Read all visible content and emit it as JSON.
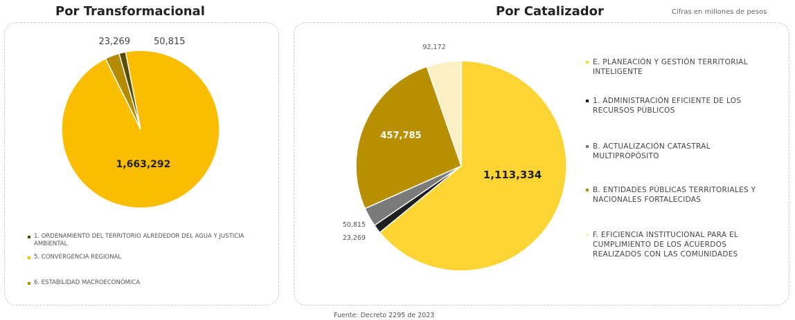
{
  "units_note": "Cifras en millones de pesos",
  "source": "Fuente: Decreto 2295 de 2023",
  "chart_data": [
    {
      "type": "pie",
      "title": "Por Transformacional",
      "legend_position": "bottom-left",
      "series": [
        {
          "name": "1. ORDENAMIENTO DEL TERRITORIO ALREDEDOR DEL AGUA Y JUSTICIA AMBIENTAL",
          "value": 23269,
          "label": "23,269",
          "color": "#5c4a00"
        },
        {
          "name": "5. CONVERGENCIA REGIONAL",
          "value": 1663292,
          "label": "1,663,292",
          "color": "#fbbd00"
        },
        {
          "name": "6. ESTABILIDAD MACROECONÓMICA",
          "value": 50815,
          "label": "50,815",
          "color": "#b48a00"
        }
      ]
    },
    {
      "type": "pie",
      "title": "Por Catalizador",
      "legend_position": "right",
      "series": [
        {
          "name": "E. PLANEACIÓN Y GESTIÓN TERRITORIAL INTELIGENTE",
          "value": 1113334,
          "label": "1,113,334",
          "color": "#fcd535"
        },
        {
          "name": "1. ADMINISTRACIÓN EFICIENTE DE LOS RECURSOS PÚBLICOS",
          "value": 23269,
          "label": "23,269",
          "color": "#1e1e1e"
        },
        {
          "name": "B. ACTUALIZACIÓN CATASTRAL MULTIPROPÓSITO",
          "value": 50815,
          "label": "50,815",
          "color": "#7a7a7a"
        },
        {
          "name": "B. ENTIDADES PÚBLICAS TERRITORIALES Y NACIONALES FORTALECIDAS",
          "value": 457785,
          "label": "457,785",
          "color": "#b88f00"
        },
        {
          "name": "F. EFICIENCIA INSTITUCIONAL PARA EL CUMPLIMIENTO DE LOS ACUERDOS REALIZADOS CON LAS COMUNIDADES",
          "value": 92172,
          "label": "92,172",
          "color": "#fcefc4"
        }
      ]
    }
  ]
}
